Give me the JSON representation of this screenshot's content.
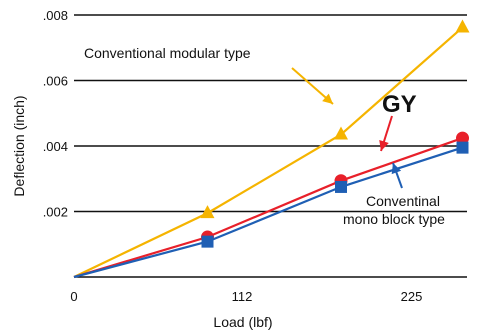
{
  "chart_data": {
    "type": "line",
    "xlabel": "Load (lbf)",
    "ylabel": "Deflection (inch)",
    "xlim": [
      0,
      262
    ],
    "ylim": [
      0,
      0.008
    ],
    "x_ticks": [
      0,
      112,
      225
    ],
    "x_tick_labels": [
      "0",
      "112",
      "225"
    ],
    "y_ticks": [
      0.002,
      0.004,
      0.006,
      0.008
    ],
    "y_tick_labels": [
      ".002",
      ".004",
      ".006",
      ".008"
    ],
    "grid": "horizontal",
    "series": [
      {
        "key": "modular",
        "color": "#f5b400",
        "marker": "triangle",
        "x": [
          0,
          89,
          178,
          259
        ],
        "y": [
          0,
          0.00195,
          0.00435,
          0.00762
        ]
      },
      {
        "key": "gy",
        "color": "#e8202a",
        "marker": "circle",
        "x": [
          0,
          89,
          178,
          259
        ],
        "y": [
          0,
          0.00122,
          0.00294,
          0.00424
        ]
      },
      {
        "key": "mono",
        "color": "#1f5fb4",
        "marker": "square",
        "x": [
          0,
          89,
          178,
          259
        ],
        "y": [
          0,
          0.00108,
          0.00275,
          0.00395
        ]
      }
    ],
    "annotations": {
      "modular": "Conventional modular type",
      "gy": "GY",
      "mono_line1": "Conventinal",
      "mono_line2": "mono block type"
    }
  }
}
